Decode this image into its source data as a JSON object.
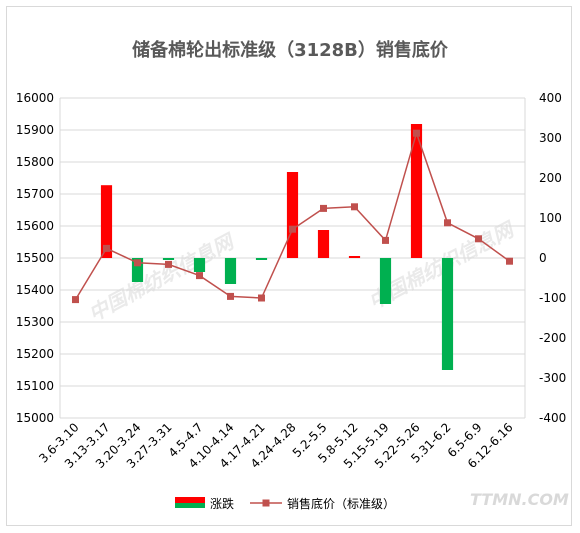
{
  "chart_data": {
    "type": "bar+line",
    "title": "储备棉轮出标准级（3128B）销售底价",
    "categories": [
      "3.6-3.10",
      "3.13-3.17",
      "3.20-3.24",
      "3.27-3.31",
      "4.5-4.7",
      "4.10-4.14",
      "4.17-4.21",
      "4.24-4.28",
      "5.2-5.5",
      "5.8-5.12",
      "5.15-5.19",
      "5.22-5.26",
      "5.31-6.2",
      "6.5-6.9",
      "6.12-6.16"
    ],
    "series": [
      {
        "name": "涨跌",
        "kind": "bar",
        "axis": "right",
        "values": [
          0,
          182,
          -60,
          -5,
          -35,
          -65,
          -5,
          215,
          70,
          5,
          -115,
          335,
          -280,
          0,
          0
        ]
      },
      {
        "name": "销售底价（标准级）",
        "kind": "line",
        "axis": "left",
        "values": [
          15370,
          15530,
          15485,
          15480,
          15445,
          15380,
          15375,
          15590,
          15655,
          15660,
          15555,
          15890,
          15610,
          15560,
          15490
        ]
      }
    ],
    "ylim_left": [
      15000,
      16000
    ],
    "yticks_left": [
      15000,
      15100,
      15200,
      15300,
      15400,
      15500,
      15600,
      15700,
      15800,
      15900,
      16000
    ],
    "ylim_right": [
      -400,
      400
    ],
    "yticks_right": [
      -400,
      -300,
      -200,
      -100,
      0,
      100,
      200,
      300,
      400
    ],
    "grid": true,
    "legend_position": "bottom",
    "colors": {
      "up": "#ff0000",
      "down": "#00b050",
      "line": "#c0504d",
      "grid": "#d9d9d9"
    }
  }
}
